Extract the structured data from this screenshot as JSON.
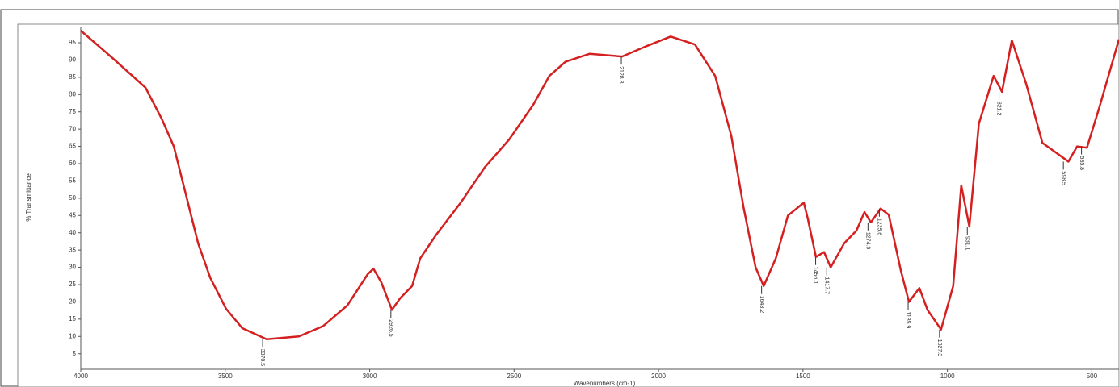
{
  "chart_data": {
    "type": "line",
    "xlabel": "Wavenumbers (cm-1)",
    "ylabel": "% Transmittance",
    "xlim": [
      4000,
      406
    ],
    "ylim": [
      0.5,
      98.5
    ],
    "xticks": [
      4000,
      3500,
      3000,
      2500,
      2000,
      1500,
      1000,
      500
    ],
    "yticks": [
      5,
      10,
      15,
      20,
      25,
      30,
      35,
      40,
      45,
      50,
      55,
      60,
      65,
      70,
      75,
      80,
      85,
      90,
      95
    ],
    "series": [
      {
        "color": "#d42020",
        "x": [
          4000,
          3888,
          3776,
          3720,
          3678,
          3636,
          3594,
          3552,
          3497,
          3441,
          3357,
          3245,
          3161,
          3077,
          3007,
          2987,
          2960,
          2923,
          2895,
          2853,
          2825,
          2769,
          2685,
          2601,
          2517,
          2434,
          2378,
          2322,
          2238,
          2126,
          2042,
          1958,
          1874,
          1804,
          1748,
          1706,
          1664,
          1636,
          1594,
          1552,
          1497,
          1483,
          1455,
          1427,
          1404,
          1357,
          1315,
          1287,
          1265,
          1231,
          1203,
          1161,
          1133,
          1097,
          1069,
          1022,
          980,
          952,
          924,
          891,
          840,
          811,
          777,
          727,
          671,
          629,
          581,
          551,
          517,
          475,
          406
        ],
        "values": [
          98.5,
          90.4,
          82,
          73,
          65,
          51,
          37,
          27,
          18,
          12.4,
          9.2,
          10,
          13,
          19,
          28,
          29.6,
          25.7,
          17.7,
          21,
          24.6,
          32.6,
          39.5,
          48.7,
          59,
          67,
          77,
          85.4,
          89.5,
          91.8,
          91,
          94,
          96.8,
          94.5,
          85.4,
          68,
          47.5,
          30,
          24.6,
          32.6,
          45,
          48.7,
          44,
          33,
          34.4,
          30,
          37,
          40.6,
          46,
          43,
          47,
          45.2,
          29,
          20,
          24,
          17.7,
          12,
          24.6,
          53.7,
          41.8,
          71.6,
          85.4,
          80.8,
          95.7,
          83,
          66,
          63.5,
          60.6,
          65,
          64.6,
          76,
          96
        ]
      }
    ],
    "peaks": [
      {
        "x": 3370.5,
        "y": 9.2
      },
      {
        "x": 2926.5,
        "y": 17.7
      },
      {
        "x": 2128.8,
        "y": 91
      },
      {
        "x": 1643.2,
        "y": 24.6
      },
      {
        "x": 1456.1,
        "y": 33
      },
      {
        "x": 1417.7,
        "y": 30
      },
      {
        "x": 1274.9,
        "y": 43
      },
      {
        "x": 1235.6,
        "y": 47
      },
      {
        "x": 1135.9,
        "y": 20
      },
      {
        "x": 1027.3,
        "y": 12
      },
      {
        "x": 931.1,
        "y": 41.8
      },
      {
        "x": 821.2,
        "y": 80.8
      },
      {
        "x": 598.5,
        "y": 60.6
      },
      {
        "x": 535.8,
        "y": 65
      }
    ]
  }
}
